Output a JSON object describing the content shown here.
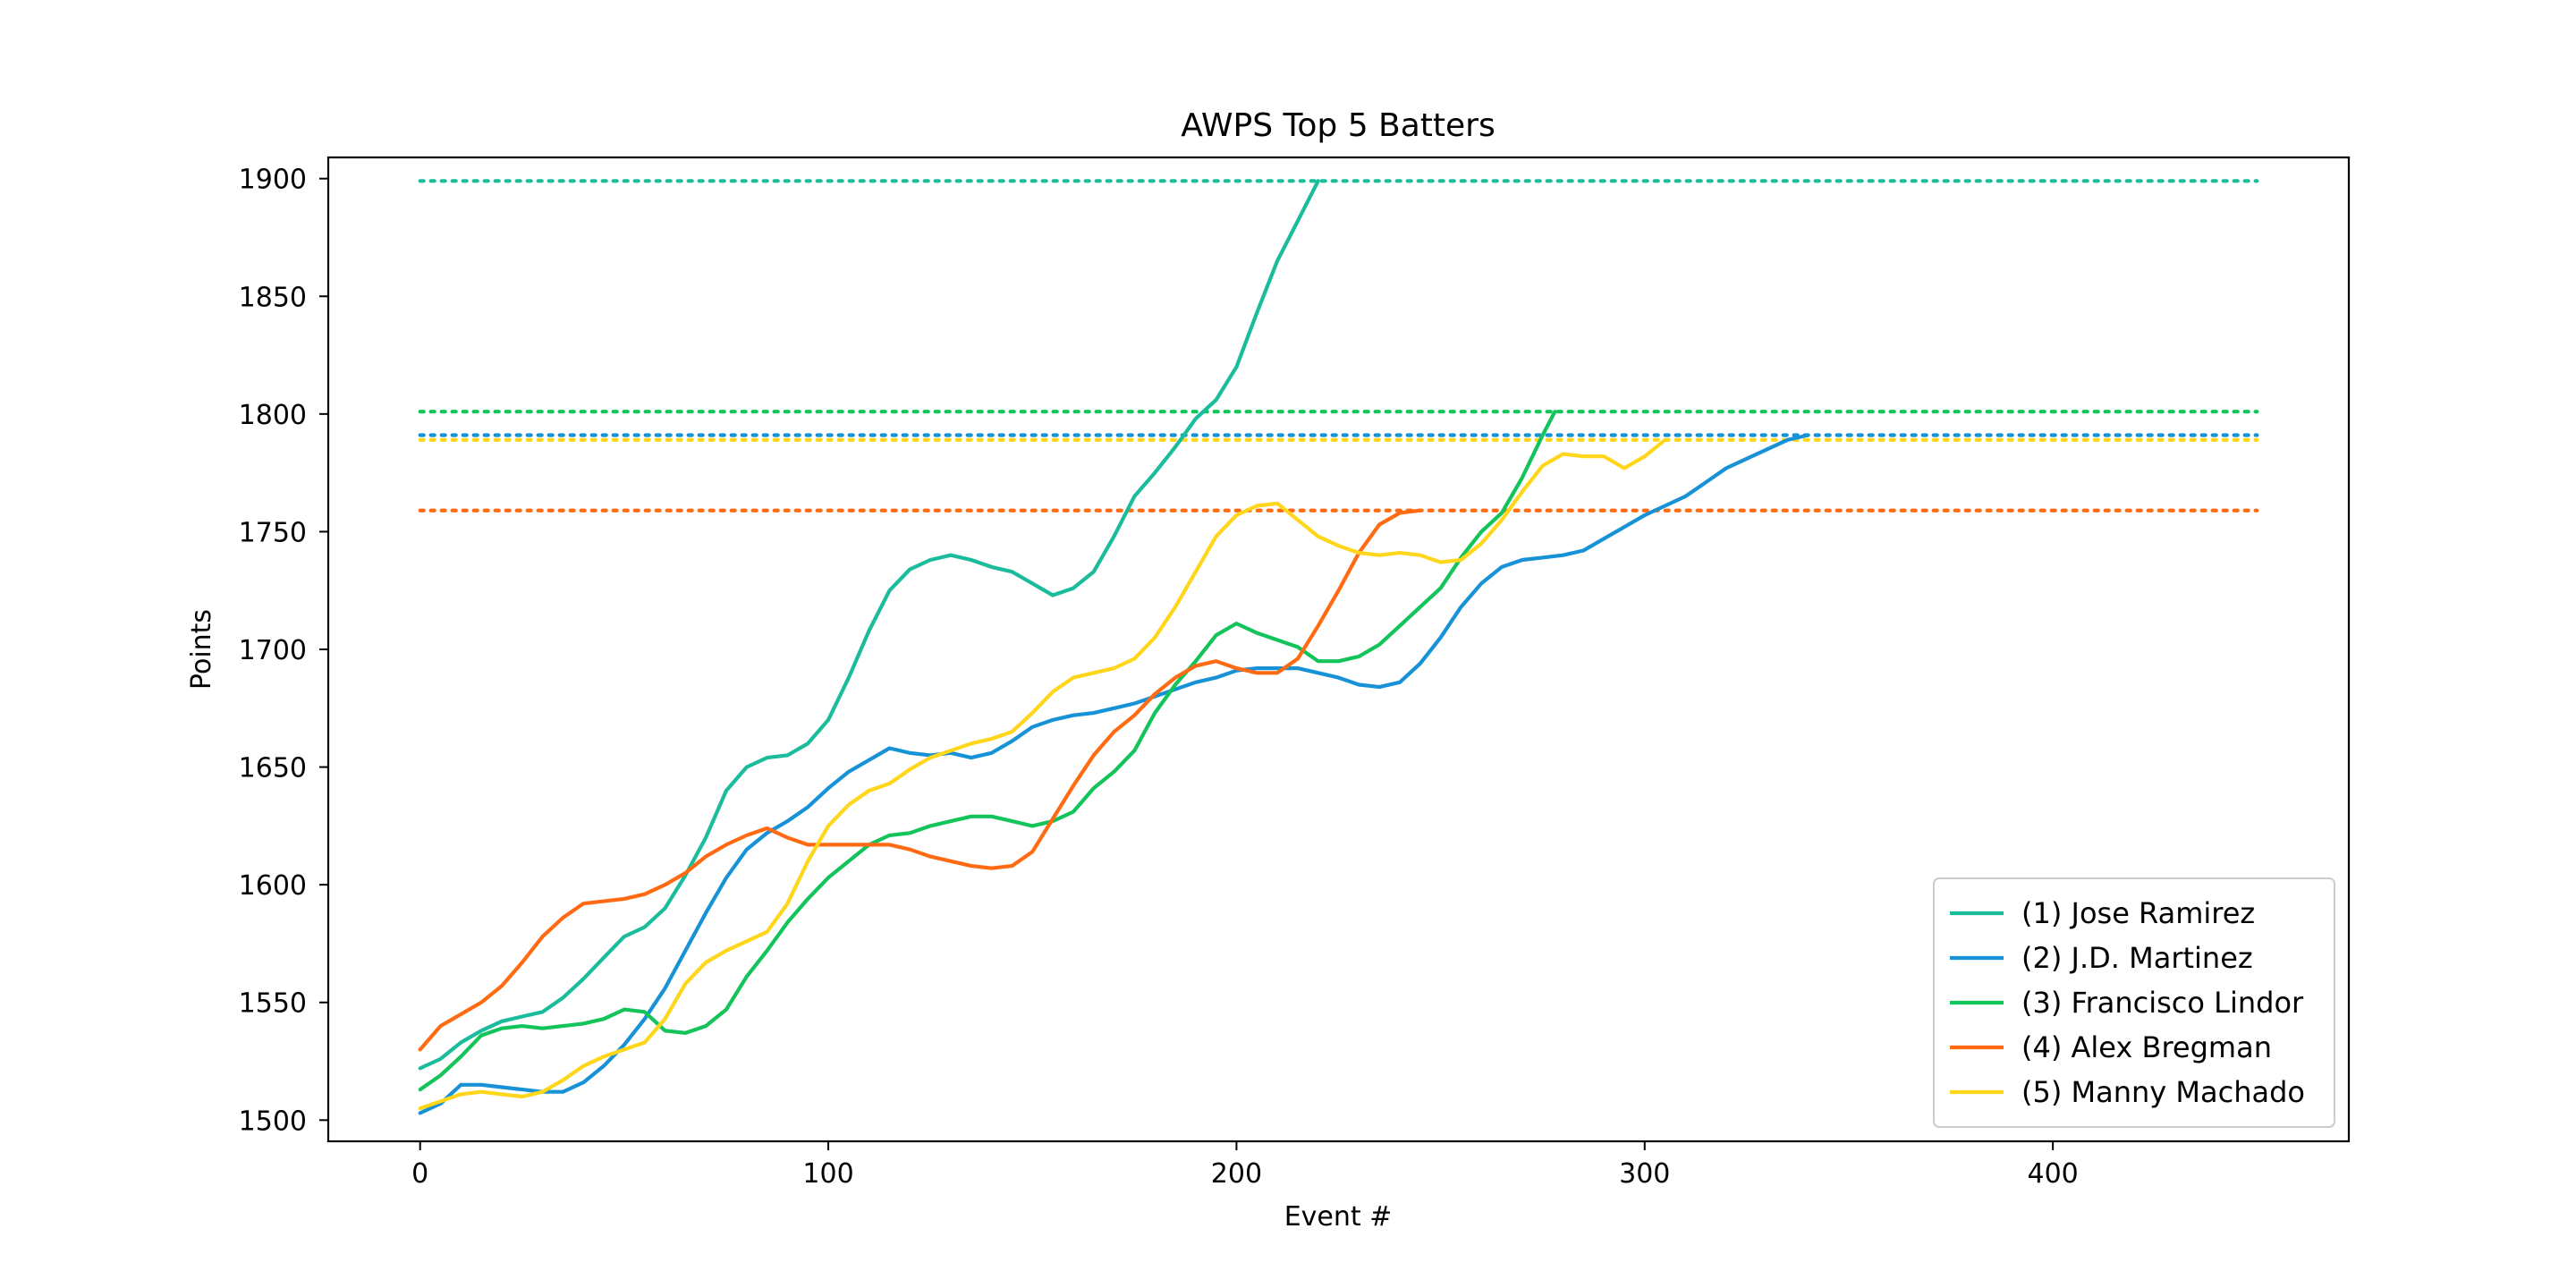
{
  "chart_data": {
    "type": "line",
    "title": "AWPS Top 5 Batters",
    "xlabel": "Event #",
    "ylabel": "Points",
    "xlim": [
      -22.5,
      472.5
    ],
    "ylim": [
      1491,
      1909
    ],
    "xticks": [
      0,
      100,
      200,
      300,
      400
    ],
    "yticks": [
      1500,
      1550,
      1600,
      1650,
      1700,
      1750,
      1800,
      1850,
      1900
    ],
    "grid": false,
    "legend_position": "lower right",
    "series": [
      {
        "name": "(1) Jose Ramirez",
        "color": "#1abc9c",
        "target": 1899,
        "target_x": [
          0,
          450
        ],
        "points": [
          [
            0,
            1522
          ],
          [
            5,
            1526
          ],
          [
            10,
            1533
          ],
          [
            15,
            1538
          ],
          [
            20,
            1542
          ],
          [
            25,
            1544
          ],
          [
            30,
            1546
          ],
          [
            35,
            1552
          ],
          [
            40,
            1560
          ],
          [
            45,
            1569
          ],
          [
            50,
            1578
          ],
          [
            55,
            1582
          ],
          [
            60,
            1590
          ],
          [
            65,
            1604
          ],
          [
            70,
            1620
          ],
          [
            75,
            1640
          ],
          [
            80,
            1650
          ],
          [
            85,
            1654
          ],
          [
            90,
            1655
          ],
          [
            95,
            1660
          ],
          [
            100,
            1670
          ],
          [
            105,
            1688
          ],
          [
            110,
            1708
          ],
          [
            115,
            1725
          ],
          [
            120,
            1734
          ],
          [
            125,
            1738
          ],
          [
            130,
            1740
          ],
          [
            135,
            1738
          ],
          [
            140,
            1735
          ],
          [
            145,
            1733
          ],
          [
            150,
            1728
          ],
          [
            155,
            1723
          ],
          [
            160,
            1726
          ],
          [
            165,
            1733
          ],
          [
            170,
            1748
          ],
          [
            175,
            1765
          ],
          [
            180,
            1775
          ],
          [
            185,
            1786
          ],
          [
            190,
            1798
          ],
          [
            195,
            1806
          ],
          [
            200,
            1820
          ],
          [
            205,
            1843
          ],
          [
            210,
            1865
          ],
          [
            215,
            1882
          ],
          [
            220,
            1899
          ]
        ]
      },
      {
        "name": "(2) J.D. Martinez",
        "color": "#1892d6",
        "target": 1791,
        "target_x": [
          0,
          450
        ],
        "points": [
          [
            0,
            1503
          ],
          [
            5,
            1507
          ],
          [
            10,
            1515
          ],
          [
            15,
            1515
          ],
          [
            20,
            1514
          ],
          [
            25,
            1513
          ],
          [
            30,
            1512
          ],
          [
            35,
            1512
          ],
          [
            40,
            1516
          ],
          [
            45,
            1523
          ],
          [
            50,
            1532
          ],
          [
            55,
            1543
          ],
          [
            60,
            1556
          ],
          [
            65,
            1572
          ],
          [
            70,
            1588
          ],
          [
            75,
            1603
          ],
          [
            80,
            1615
          ],
          [
            85,
            1622
          ],
          [
            90,
            1627
          ],
          [
            95,
            1633
          ],
          [
            100,
            1641
          ],
          [
            105,
            1648
          ],
          [
            110,
            1653
          ],
          [
            115,
            1658
          ],
          [
            120,
            1656
          ],
          [
            125,
            1655
          ],
          [
            130,
            1656
          ],
          [
            135,
            1654
          ],
          [
            140,
            1656
          ],
          [
            145,
            1661
          ],
          [
            150,
            1667
          ],
          [
            155,
            1670
          ],
          [
            160,
            1672
          ],
          [
            165,
            1673
          ],
          [
            170,
            1675
          ],
          [
            175,
            1677
          ],
          [
            180,
            1680
          ],
          [
            185,
            1683
          ],
          [
            190,
            1686
          ],
          [
            195,
            1688
          ],
          [
            200,
            1691
          ],
          [
            205,
            1692
          ],
          [
            210,
            1692
          ],
          [
            215,
            1692
          ],
          [
            220,
            1690
          ],
          [
            225,
            1688
          ],
          [
            230,
            1685
          ],
          [
            235,
            1684
          ],
          [
            240,
            1686
          ],
          [
            245,
            1694
          ],
          [
            250,
            1705
          ],
          [
            255,
            1718
          ],
          [
            260,
            1728
          ],
          [
            265,
            1735
          ],
          [
            270,
            1738
          ],
          [
            275,
            1739
          ],
          [
            280,
            1740
          ],
          [
            285,
            1742
          ],
          [
            290,
            1747
          ],
          [
            295,
            1752
          ],
          [
            300,
            1757
          ],
          [
            305,
            1761
          ],
          [
            310,
            1765
          ],
          [
            315,
            1771
          ],
          [
            320,
            1777
          ],
          [
            325,
            1781
          ],
          [
            330,
            1785
          ],
          [
            335,
            1789
          ],
          [
            340,
            1791
          ]
        ]
      },
      {
        "name": "(3) Francisco Lindor",
        "color": "#13c45a",
        "target": 1801,
        "target_x": [
          0,
          450
        ],
        "points": [
          [
            0,
            1513
          ],
          [
            5,
            1519
          ],
          [
            10,
            1527
          ],
          [
            15,
            1536
          ],
          [
            20,
            1539
          ],
          [
            25,
            1540
          ],
          [
            30,
            1539
          ],
          [
            35,
            1540
          ],
          [
            40,
            1541
          ],
          [
            45,
            1543
          ],
          [
            50,
            1547
          ],
          [
            55,
            1546
          ],
          [
            60,
            1538
          ],
          [
            65,
            1537
          ],
          [
            70,
            1540
          ],
          [
            75,
            1547
          ],
          [
            80,
            1561
          ],
          [
            85,
            1572
          ],
          [
            90,
            1584
          ],
          [
            95,
            1594
          ],
          [
            100,
            1603
          ],
          [
            105,
            1610
          ],
          [
            110,
            1617
          ],
          [
            115,
            1621
          ],
          [
            120,
            1622
          ],
          [
            125,
            1625
          ],
          [
            130,
            1627
          ],
          [
            135,
            1629
          ],
          [
            140,
            1629
          ],
          [
            145,
            1627
          ],
          [
            150,
            1625
          ],
          [
            155,
            1627
          ],
          [
            160,
            1631
          ],
          [
            165,
            1641
          ],
          [
            170,
            1648
          ],
          [
            175,
            1657
          ],
          [
            180,
            1673
          ],
          [
            185,
            1685
          ],
          [
            190,
            1695
          ],
          [
            195,
            1706
          ],
          [
            200,
            1711
          ],
          [
            205,
            1707
          ],
          [
            210,
            1704
          ],
          [
            215,
            1701
          ],
          [
            220,
            1695
          ],
          [
            225,
            1695
          ],
          [
            230,
            1697
          ],
          [
            235,
            1702
          ],
          [
            240,
            1710
          ],
          [
            245,
            1718
          ],
          [
            250,
            1726
          ],
          [
            255,
            1739
          ],
          [
            260,
            1750
          ],
          [
            265,
            1758
          ],
          [
            270,
            1773
          ],
          [
            275,
            1791
          ],
          [
            278,
            1801
          ]
        ]
      },
      {
        "name": "(4) Alex Bregman",
        "color": "#ff6a13",
        "target": 1759,
        "target_x": [
          0,
          450
        ],
        "points": [
          [
            0,
            1530
          ],
          [
            5,
            1540
          ],
          [
            10,
            1545
          ],
          [
            15,
            1550
          ],
          [
            20,
            1557
          ],
          [
            25,
            1567
          ],
          [
            30,
            1578
          ],
          [
            35,
            1586
          ],
          [
            40,
            1592
          ],
          [
            45,
            1593
          ],
          [
            50,
            1594
          ],
          [
            55,
            1596
          ],
          [
            60,
            1600
          ],
          [
            65,
            1605
          ],
          [
            70,
            1612
          ],
          [
            75,
            1617
          ],
          [
            80,
            1621
          ],
          [
            85,
            1624
          ],
          [
            90,
            1620
          ],
          [
            95,
            1617
          ],
          [
            100,
            1617
          ],
          [
            105,
            1617
          ],
          [
            110,
            1617
          ],
          [
            115,
            1617
          ],
          [
            120,
            1615
          ],
          [
            125,
            1612
          ],
          [
            130,
            1610
          ],
          [
            135,
            1608
          ],
          [
            140,
            1607
          ],
          [
            145,
            1608
          ],
          [
            150,
            1614
          ],
          [
            155,
            1628
          ],
          [
            160,
            1642
          ],
          [
            165,
            1655
          ],
          [
            170,
            1665
          ],
          [
            175,
            1672
          ],
          [
            180,
            1681
          ],
          [
            185,
            1688
          ],
          [
            190,
            1693
          ],
          [
            195,
            1695
          ],
          [
            200,
            1692
          ],
          [
            205,
            1690
          ],
          [
            210,
            1690
          ],
          [
            215,
            1696
          ],
          [
            220,
            1710
          ],
          [
            225,
            1725
          ],
          [
            230,
            1741
          ],
          [
            235,
            1753
          ],
          [
            240,
            1758
          ],
          [
            245,
            1759
          ]
        ]
      },
      {
        "name": "(5) Manny Machado",
        "color": "#ffd61a",
        "target": 1789,
        "target_x": [
          0,
          450
        ],
        "points": [
          [
            0,
            1505
          ],
          [
            5,
            1508
          ],
          [
            10,
            1511
          ],
          [
            15,
            1512
          ],
          [
            20,
            1511
          ],
          [
            25,
            1510
          ],
          [
            30,
            1512
          ],
          [
            35,
            1517
          ],
          [
            40,
            1523
          ],
          [
            45,
            1527
          ],
          [
            50,
            1530
          ],
          [
            55,
            1533
          ],
          [
            60,
            1543
          ],
          [
            65,
            1558
          ],
          [
            70,
            1567
          ],
          [
            75,
            1572
          ],
          [
            80,
            1576
          ],
          [
            85,
            1580
          ],
          [
            90,
            1592
          ],
          [
            95,
            1610
          ],
          [
            100,
            1625
          ],
          [
            105,
            1634
          ],
          [
            110,
            1640
          ],
          [
            115,
            1643
          ],
          [
            120,
            1649
          ],
          [
            125,
            1654
          ],
          [
            130,
            1657
          ],
          [
            135,
            1660
          ],
          [
            140,
            1662
          ],
          [
            145,
            1665
          ],
          [
            150,
            1673
          ],
          [
            155,
            1682
          ],
          [
            160,
            1688
          ],
          [
            165,
            1690
          ],
          [
            170,
            1692
          ],
          [
            175,
            1696
          ],
          [
            180,
            1705
          ],
          [
            185,
            1718
          ],
          [
            190,
            1733
          ],
          [
            195,
            1748
          ],
          [
            200,
            1757
          ],
          [
            205,
            1761
          ],
          [
            210,
            1762
          ],
          [
            215,
            1755
          ],
          [
            220,
            1748
          ],
          [
            225,
            1744
          ],
          [
            230,
            1741
          ],
          [
            235,
            1740
          ],
          [
            240,
            1741
          ],
          [
            245,
            1740
          ],
          [
            250,
            1737
          ],
          [
            255,
            1738
          ],
          [
            260,
            1745
          ],
          [
            265,
            1755
          ],
          [
            270,
            1767
          ],
          [
            275,
            1778
          ],
          [
            280,
            1783
          ],
          [
            285,
            1782
          ],
          [
            290,
            1782
          ],
          [
            295,
            1777
          ],
          [
            300,
            1782
          ],
          [
            305,
            1789
          ]
        ]
      }
    ]
  }
}
